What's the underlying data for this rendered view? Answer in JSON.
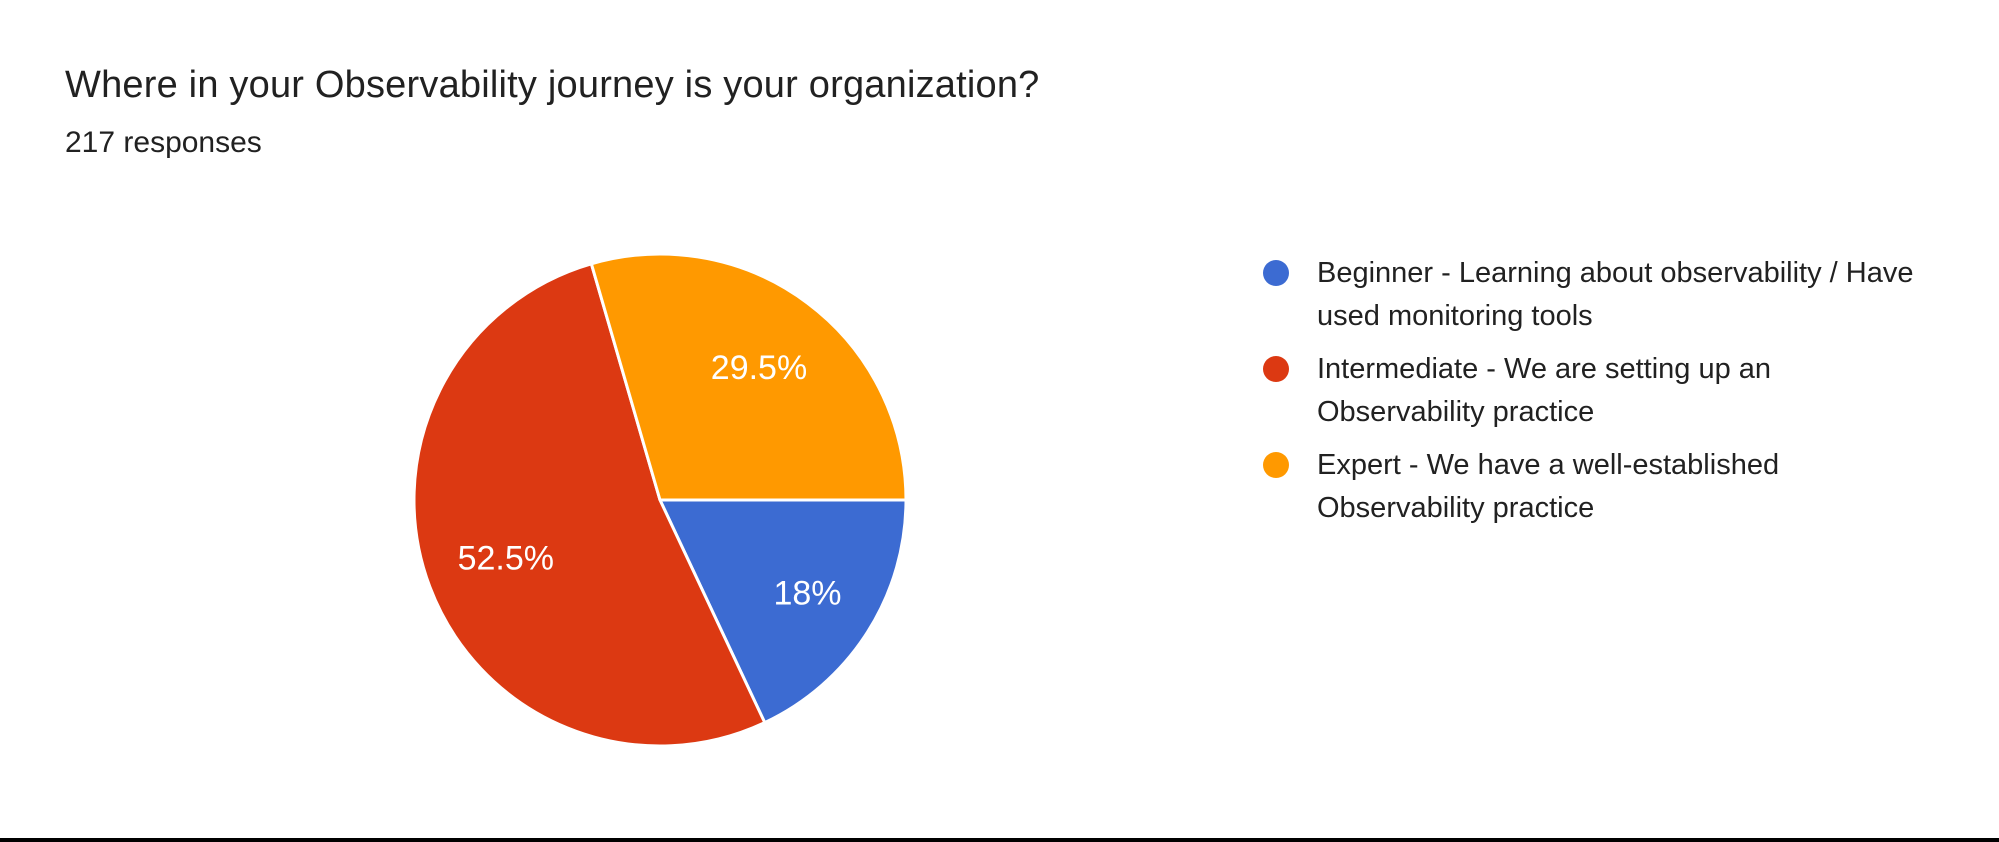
{
  "page": {
    "title": "Where in your Observability journey is your organization?",
    "subtitle": "217 responses"
  },
  "chart_data": {
    "type": "pie",
    "title": "Where in your Observability journey is your organization?",
    "subtitle": "217 responses",
    "total_responses": 217,
    "start_angle_deg": 90,
    "direction": "clockwise",
    "legend_position": "right",
    "slices": [
      {
        "label": "Beginner - Learning about observability / Have used monitoring tools",
        "value_pct": 18,
        "display": "18%",
        "color": "#3C6BD2",
        "label_radius_factor": 0.71
      },
      {
        "label": "Intermediate - We are setting up an Observability practice",
        "value_pct": 52.5,
        "display": "52.5%",
        "color": "#DC3912",
        "label_radius_factor": 0.67
      },
      {
        "label": "Expert - We have a well-established Observability practice",
        "value_pct": 29.5,
        "display": "29.5%",
        "color": "#FF9900",
        "label_radius_factor": 0.67
      }
    ]
  },
  "colors": {
    "title_text": "#212121",
    "slice_label_text": "#FFFFFF",
    "slice_separator": "#FFFFFF",
    "background": "#FFFFFF",
    "bottom_bar": "#000000"
  }
}
